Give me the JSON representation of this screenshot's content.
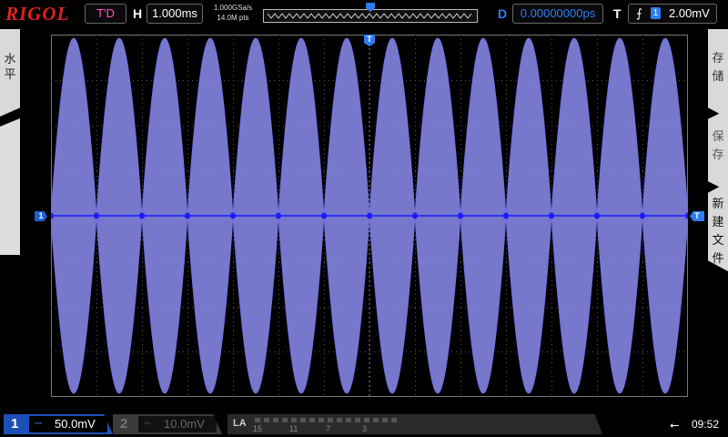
{
  "header": {
    "brand": "RIGOL",
    "run_state": "T'D",
    "horizontal_label": "H",
    "horizontal_scale": "1.000ms",
    "sample_rate": "1.000GSa/s",
    "memory_depth": "14.0M pts",
    "delay_label": "D",
    "delay_value": "0.00000000ps",
    "trigger_label": "T",
    "trigger_source": "1",
    "trigger_level": "2.00mV"
  },
  "left_menu": {
    "horizontal": "水平"
  },
  "right_menu": {
    "storage": "存储",
    "save": "保存",
    "new_file": "新建文件"
  },
  "markers": {
    "ch1": "1",
    "trigger_level_marker": "T",
    "trigger_position_marker": "T"
  },
  "channels": [
    {
      "number": "1",
      "coupling": "⎓",
      "scale": "50.0mV",
      "active": true,
      "color": "#1d4fb8"
    },
    {
      "number": "2",
      "coupling": "⎓",
      "scale": "10.0mV",
      "active": false,
      "color": "#777777"
    }
  ],
  "logic_analyzer": {
    "label": "LA",
    "bit_labels": [
      "15",
      "11",
      "7",
      "3"
    ]
  },
  "status": {
    "usb_icon": "usb-icon",
    "time": "09:52"
  },
  "waveform": {
    "type": "amplitude-modulated sine (beat envelope)",
    "lobes": 14,
    "color": "#8c8cf0",
    "node_color": "#1a1aff",
    "grid_divisions_x": 14,
    "grid_divisions_y": 8
  }
}
